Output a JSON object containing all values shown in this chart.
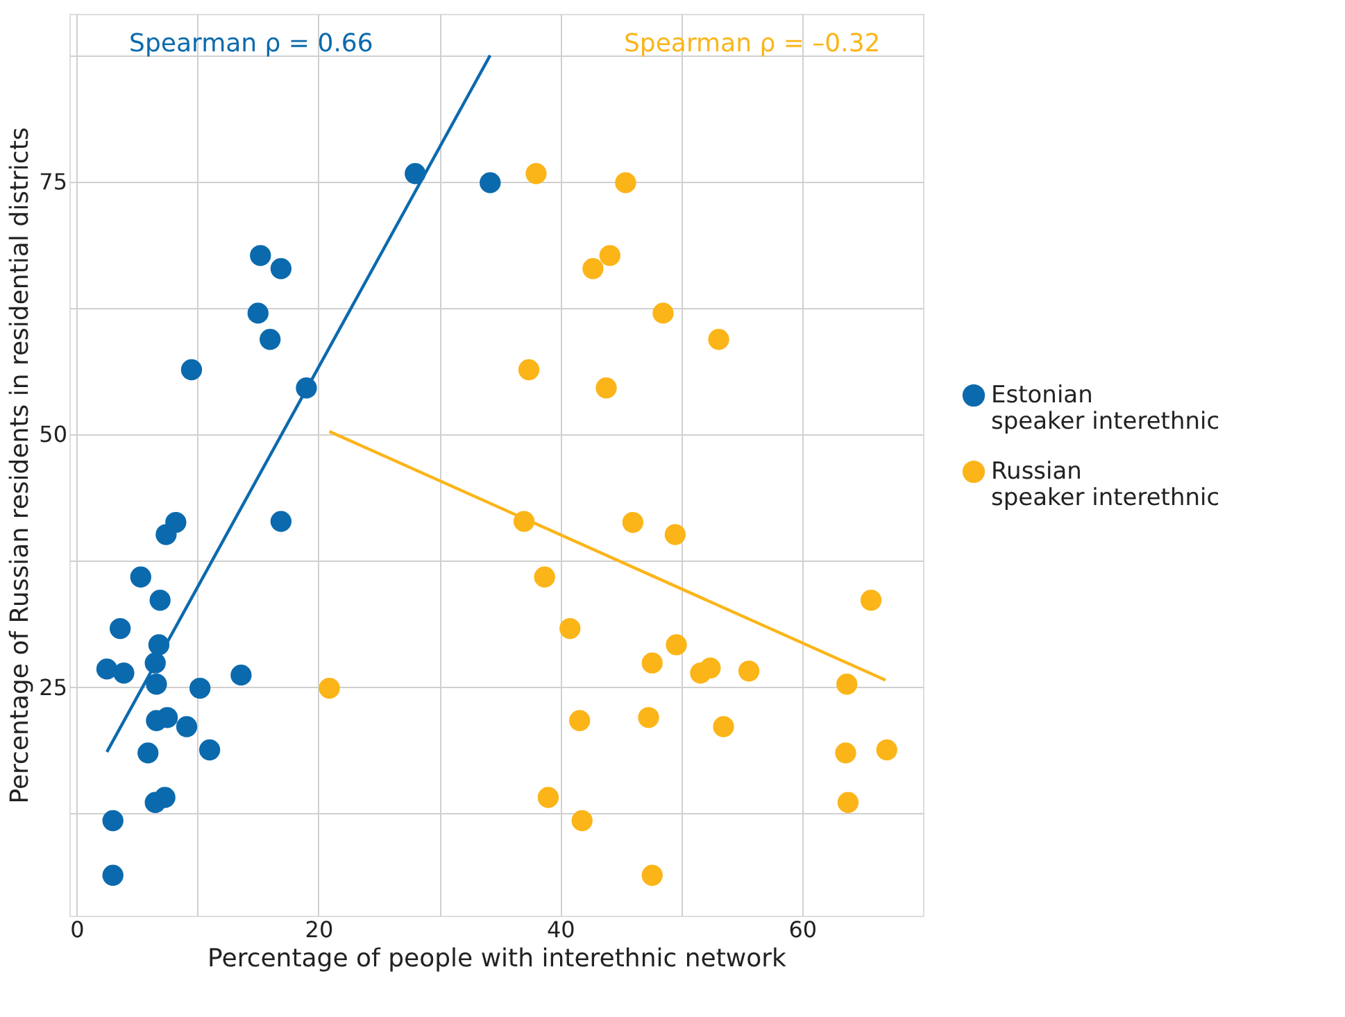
{
  "chart_data": {
    "type": "scatter",
    "xlabel": "Percentage of people with interethnic network",
    "ylabel": "Percentage of Russian residents in residential districts",
    "annotations": [
      "Spearman ρ = 0.66",
      "Spearman ρ = –0.32"
    ],
    "xlim": [
      -0.6,
      70
    ],
    "ylim": [
      2.4,
      91.6
    ],
    "xticks": [
      0,
      {
        "value": 10,
        "label": null
      },
      20,
      {
        "value": 30,
        "label": null
      },
      40,
      {
        "value": 50,
        "label": null
      },
      60
    ],
    "yticks": [
      {
        "value": 12.5,
        "label": null
      },
      25,
      {
        "value": 37.5,
        "label": null
      },
      50,
      {
        "value": 62.5,
        "label": null
      },
      75,
      {
        "value": 87.5,
        "label": null
      }
    ],
    "grid": true,
    "legend": "right",
    "marker": "circle",
    "series": [
      {
        "name": "Estonian speaker interethnic",
        "color": "#0b6aad",
        "x": [
          2.5,
          3.9,
          3.6,
          3.0,
          3.0,
          5.3,
          5.9,
          6.5,
          6.6,
          6.8,
          6.9,
          6.6,
          7.5,
          6.5,
          7.3,
          7.4,
          8.2,
          9.1,
          10.2,
          11.0,
          13.6,
          9.5,
          15.2,
          16.9,
          15.0,
          16.0,
          19.0,
          16.9,
          28.0,
          34.2
        ],
        "values": [
          26.8,
          26.4,
          30.8,
          11.8,
          6.4,
          35.9,
          18.5,
          27.4,
          25.3,
          29.2,
          33.6,
          21.7,
          22.0,
          13.6,
          14.1,
          40.1,
          41.3,
          21.1,
          24.9,
          18.8,
          26.2,
          56.4,
          67.7,
          66.4,
          62.0,
          59.4,
          54.6,
          41.4,
          75.8,
          74.9
        ]
      },
      {
        "name": "Russian speaker interethnic",
        "color": "#fbb519",
        "x": [
          20.9,
          38.0,
          45.4,
          42.7,
          44.1,
          48.5,
          53.1,
          37.4,
          43.8,
          37.0,
          46.0,
          49.5,
          38.7,
          40.8,
          49.6,
          47.6,
          51.6,
          52.4,
          55.6,
          65.7,
          63.7,
          41.6,
          47.3,
          53.5,
          63.6,
          67.0,
          63.8,
          39.0,
          41.8,
          47.6
        ],
        "values": [
          24.9,
          75.8,
          74.9,
          66.4,
          67.7,
          62.0,
          59.4,
          56.4,
          54.6,
          41.4,
          41.3,
          40.1,
          35.9,
          30.8,
          29.2,
          27.4,
          26.4,
          26.9,
          26.6,
          33.6,
          25.3,
          21.7,
          22.0,
          21.1,
          18.5,
          18.8,
          13.6,
          14.1,
          11.8,
          6.4
        ]
      },
      {
        "type": "line",
        "marker": "none",
        "color": "#0b6aad",
        "x": [
          2.5,
          34.2
        ],
        "values": [
          18.6,
          87.5
        ]
      },
      {
        "type": "line",
        "marker": "none",
        "color": "#fbb519",
        "x": [
          20.9,
          66.9
        ],
        "values": [
          50.3,
          25.7
        ]
      }
    ]
  }
}
